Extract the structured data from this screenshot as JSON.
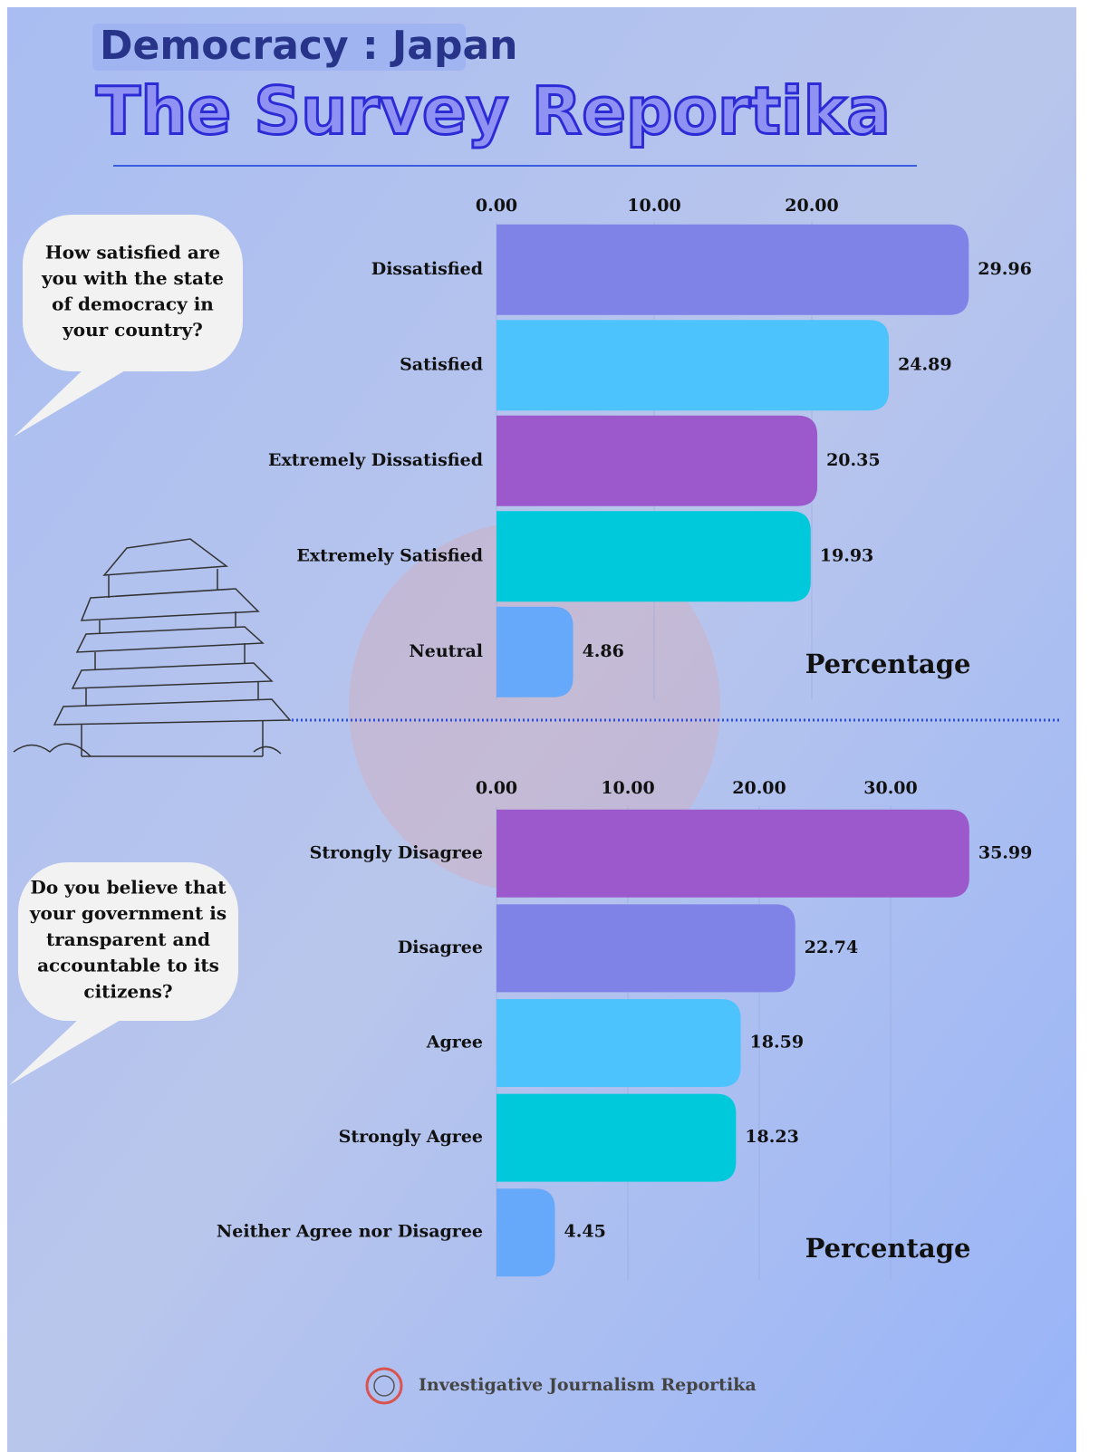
{
  "header": {
    "label": "Democracy : Japan",
    "title": "The Survey Reportika"
  },
  "chart_data": [
    {
      "type": "bar",
      "orientation": "horizontal",
      "question": [
        "How satisfied are",
        "you with the state",
        "of democracy in",
        "your country?"
      ],
      "categories": [
        "Dissatisfied",
        "Satisfied",
        "Extremely Dissatisfied",
        "Extremely Satisfied",
        "Neutral"
      ],
      "values": [
        29.96,
        24.89,
        20.35,
        19.93,
        4.86
      ],
      "colors": [
        "#7f82e6",
        "#4cc3fc",
        "#9b59cc",
        "#00c9dc",
        "#66a8fa"
      ],
      "xlabel": "Percentage",
      "xlim": [
        0,
        30
      ],
      "xticks": [
        {
          "value": 0,
          "label": "0.00"
        },
        {
          "value": 10,
          "label": "10.00"
        },
        {
          "value": 20,
          "label": "20.00"
        }
      ],
      "grid": true
    },
    {
      "type": "bar",
      "orientation": "horizontal",
      "question": [
        "Do you believe that",
        "your government is",
        "transparent and",
        "accountable to its",
        "citizens?"
      ],
      "categories": [
        "Strongly Disagree",
        "Disagree",
        "Agree",
        "Strongly Agree",
        "Neither Agree nor Disagree"
      ],
      "values": [
        35.99,
        22.74,
        18.59,
        18.23,
        4.45
      ],
      "colors": [
        "#9b59cc",
        "#7f82e6",
        "#4cc3fc",
        "#00c9dc",
        "#66a8fa"
      ],
      "xlabel": "Percentage",
      "xlim": [
        0,
        36
      ],
      "xticks": [
        {
          "value": 0,
          "label": "0.00"
        },
        {
          "value": 10,
          "label": "10.00"
        },
        {
          "value": 20,
          "label": "20.00"
        },
        {
          "value": 30,
          "label": "30.00"
        }
      ],
      "grid": true
    }
  ],
  "footer": {
    "text": "Investigative Journalism Reportika"
  }
}
